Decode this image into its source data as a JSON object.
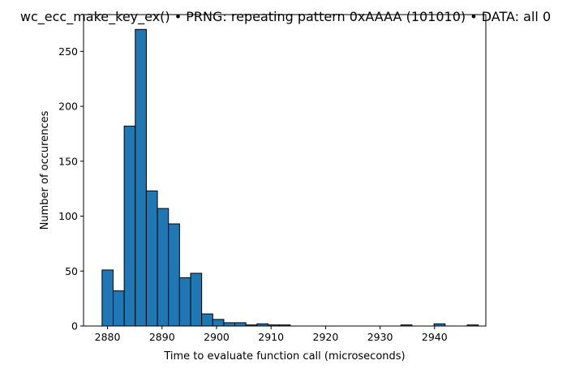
{
  "chart_data": {
    "type": "bar",
    "subtype": "histogram",
    "title": "wc_ecc_make_key_ex() • PRNG: repeating pattern 0xAAAA (101010) • DATA: all 0",
    "xlabel": "Time to evaluate function call (microseconds)",
    "ylabel": "Number of occurences",
    "bin_start": 2879,
    "bin_width": 2.03,
    "counts": [
      51,
      32,
      182,
      270,
      123,
      107,
      93,
      44,
      48,
      11,
      6,
      3,
      3,
      1,
      2,
      1,
      1,
      0,
      0,
      0,
      0,
      0,
      0,
      0,
      0,
      0,
      0,
      1,
      0,
      0,
      2,
      0,
      0,
      1
    ],
    "xlim": [
      2875.6,
      2949.4
    ],
    "ylim": [
      0,
      283.5
    ],
    "xticks": [
      2880,
      2890,
      2900,
      2910,
      2920,
      2930,
      2940
    ],
    "yticks": [
      0,
      50,
      100,
      150,
      200,
      250
    ],
    "bar_color": "#1f77b4",
    "edge_color": "#000000",
    "grid": false
  }
}
